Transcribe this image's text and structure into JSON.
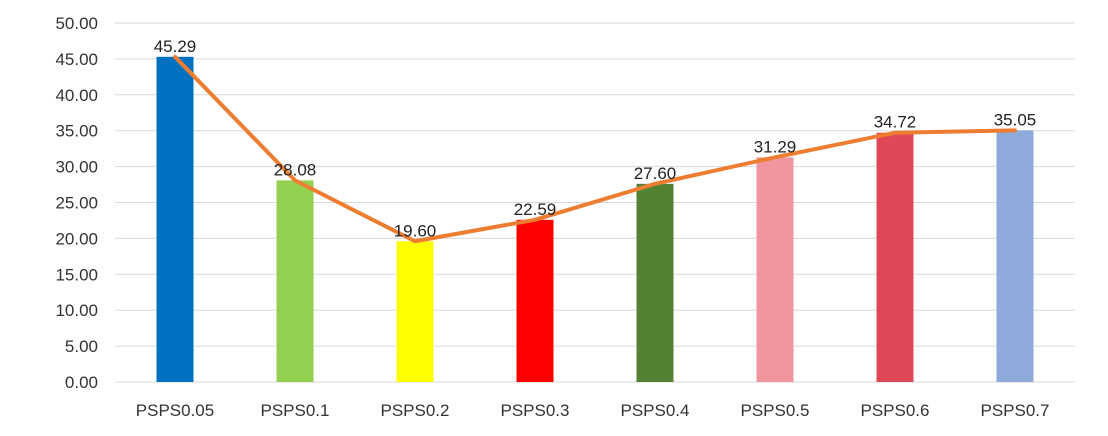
{
  "chart_data": {
    "type": "bar",
    "title": "",
    "xlabel": "",
    "ylabel": "",
    "categories": [
      "PSPS0.05",
      "PSPS0.1",
      "PSPS0.2",
      "PSPS0.3",
      "PSPS0.4",
      "PSPS0.5",
      "PSPS0.6",
      "PSPS0.7"
    ],
    "values": [
      45.29,
      28.08,
      19.6,
      22.59,
      27.6,
      31.29,
      34.72,
      35.05
    ],
    "value_labels": [
      "45.29",
      "28.08",
      "19.60",
      "22.59",
      "27.60",
      "31.29",
      "34.72",
      "35.05"
    ],
    "bar_colors": [
      "#0070c0",
      "#92d050",
      "#ffff00",
      "#ff0000",
      "#548235",
      "#f0969e",
      "#e04858",
      "#8eaadb"
    ],
    "overlay_line": {
      "type": "line",
      "color": "#ed7d31",
      "values": [
        45.29,
        28.08,
        19.6,
        22.59,
        27.6,
        31.29,
        34.72,
        35.05
      ]
    },
    "ylim": [
      0,
      50
    ],
    "yticks": [
      "0.00",
      "5.00",
      "10.00",
      "15.00",
      "20.00",
      "25.00",
      "30.00",
      "35.00",
      "40.00",
      "45.00",
      "50.00"
    ],
    "grid": true,
    "legend": "none"
  }
}
